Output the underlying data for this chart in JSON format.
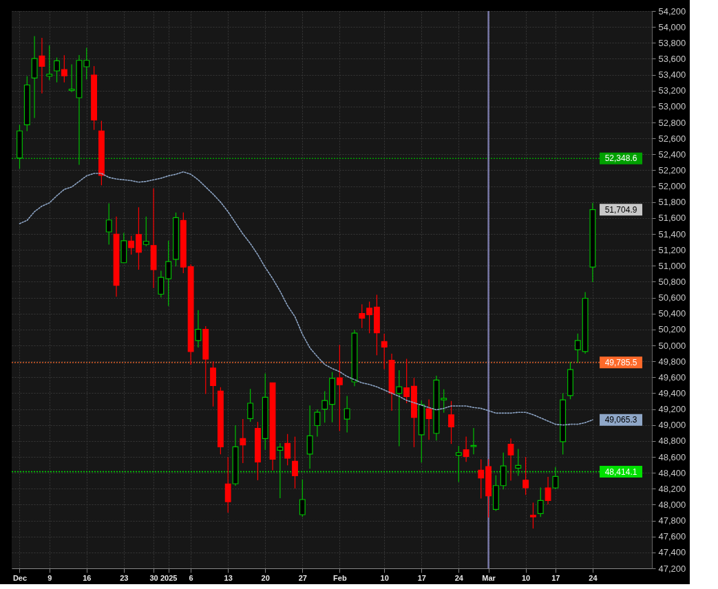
{
  "chart_data": {
    "type": "candlestick",
    "categories": [
      "Dec",
      null,
      null,
      null,
      "9",
      null,
      null,
      null,
      null,
      "16",
      null,
      null,
      null,
      null,
      "23",
      null,
      null,
      null,
      "30",
      null,
      "2025",
      null,
      null,
      "6",
      null,
      null,
      null,
      null,
      "13",
      null,
      null,
      null,
      null,
      "20",
      null,
      null,
      null,
      null,
      "27",
      null,
      null,
      null,
      null,
      "Feb",
      null,
      null,
      null,
      null,
      null,
      "10",
      null,
      null,
      null,
      null,
      "17",
      null,
      null,
      null,
      null,
      "24",
      null,
      null,
      null,
      "Mar",
      null,
      null,
      null,
      null,
      "10",
      null,
      null,
      null,
      "17",
      null,
      null,
      null,
      null,
      "24"
    ],
    "ylim": [
      47200,
      54200
    ],
    "yticks": [
      {
        "value": 47200,
        "label": "47,200"
      },
      {
        "value": 47400,
        "label": "47,400"
      },
      {
        "value": 47600,
        "label": "47,600"
      },
      {
        "value": 47800,
        "label": "47,800"
      },
      {
        "value": 48000,
        "label": "48,000"
      },
      {
        "value": 48200,
        "label": "48,200"
      },
      {
        "value": 48400,
        "label": "48,400"
      },
      {
        "value": 48600,
        "label": "48,600"
      },
      {
        "value": 48800,
        "label": "48,800"
      },
      {
        "value": 49000,
        "label": "49,000"
      },
      {
        "value": 49200,
        "label": "49,200"
      },
      {
        "value": 49400,
        "label": "49,400"
      },
      {
        "value": 49600,
        "label": "49,600"
      },
      {
        "value": 49800,
        "label": "49,800"
      },
      {
        "value": 50000,
        "label": "50,000"
      },
      {
        "value": 50200,
        "label": "50,200"
      },
      {
        "value": 50400,
        "label": "50,400"
      },
      {
        "value": 50600,
        "label": "50,600"
      },
      {
        "value": 50800,
        "label": "50,800"
      },
      {
        "value": 51000,
        "label": "51,000"
      },
      {
        "value": 51200,
        "label": "51,200"
      },
      {
        "value": 51400,
        "label": "51,400"
      },
      {
        "value": 51600,
        "label": "51,600"
      },
      {
        "value": 51800,
        "label": "51,800"
      },
      {
        "value": 52000,
        "label": "52,000"
      },
      {
        "value": 52200,
        "label": "52,200"
      },
      {
        "value": 52400,
        "label": "52,400"
      },
      {
        "value": 52600,
        "label": "52,600"
      },
      {
        "value": 52800,
        "label": "52,800"
      },
      {
        "value": 53000,
        "label": "53,000"
      },
      {
        "value": 53200,
        "label": "53,200"
      },
      {
        "value": 53400,
        "label": "53,400"
      },
      {
        "value": 53600,
        "label": "53,600"
      },
      {
        "value": 53800,
        "label": "53,800"
      },
      {
        "value": 54000,
        "label": "54,000"
      },
      {
        "value": 54200,
        "label": "54,200"
      }
    ],
    "grid": true,
    "series": [
      {
        "type": "line",
        "color": "#8fa7c8",
        "line_style": "dotted",
        "values": [
          51530,
          51570,
          51680,
          51750,
          51790,
          51880,
          51960,
          51990,
          52060,
          52130,
          52160,
          52160,
          52110,
          52090,
          52080,
          52070,
          52050,
          52060,
          52080,
          52100,
          52130,
          52150,
          52180,
          52150,
          52080,
          51990,
          51900,
          51800,
          51680,
          51540,
          51400,
          51280,
          51140,
          50980,
          50840,
          50680,
          50500,
          50360,
          50140,
          49970,
          49860,
          49760,
          49710,
          49670,
          49610,
          49570,
          49530,
          49510,
          49480,
          49440,
          49400,
          49360,
          49310,
          49280,
          49250,
          49220,
          49190,
          49210,
          49240,
          49240,
          49240,
          49220,
          49210,
          49180,
          49150,
          49150,
          49150,
          49160,
          49160,
          49130,
          49090,
          49050,
          49010,
          49000,
          49010,
          49010,
          49030,
          49065.3
        ],
        "value_labels": [
          null,
          null,
          null,
          null,
          null,
          null,
          null,
          null,
          null,
          null,
          null,
          null,
          null,
          null,
          null,
          null,
          null,
          null,
          null,
          null,
          null,
          null,
          null,
          null,
          null,
          null,
          null,
          null,
          null,
          null,
          null,
          null,
          null,
          null,
          null,
          null,
          null,
          null,
          null,
          null,
          null,
          null,
          null,
          null,
          null,
          null,
          null,
          null,
          null,
          null,
          null,
          null,
          null,
          null,
          null,
          null,
          null,
          null,
          null,
          null,
          null,
          null,
          null,
          null,
          null,
          null,
          null,
          null,
          null,
          null,
          null,
          null,
          null,
          null,
          null,
          null,
          null,
          "49,065.3"
        ]
      },
      {
        "type": "candlestick",
        "ohlc": [
          [
            52354,
            52771,
            52219,
            52694
          ],
          [
            52771,
            53381,
            52691,
            53271
          ],
          [
            53359,
            53884,
            52857,
            53602
          ],
          [
            53635,
            53862,
            53166,
            53506
          ],
          [
            53381,
            53768,
            53332,
            53406
          ],
          [
            53448,
            53616,
            53304,
            53575
          ],
          [
            53464,
            53644,
            53304,
            53387
          ],
          [
            53202,
            53530,
            53180,
            53218
          ],
          [
            53111,
            53646,
            52268,
            53580
          ],
          [
            53500,
            53738,
            53340,
            53580
          ],
          [
            53395,
            53508,
            52707,
            52832
          ],
          [
            52694,
            52821,
            52011,
            52136
          ],
          [
            51426,
            51785,
            51266,
            51575
          ],
          [
            51398,
            51619,
            50611,
            50755
          ],
          [
            51039,
            51412,
            51033,
            51315
          ],
          [
            51310,
            51376,
            51141,
            51227
          ],
          [
            51393,
            51735,
            50951,
            51169
          ],
          [
            51268,
            51619,
            51246,
            51307
          ],
          [
            51255,
            51973,
            50722,
            50951
          ],
          [
            50644,
            50937,
            50603,
            50854
          ],
          [
            50838,
            51315,
            50495,
            51053
          ],
          [
            51081,
            51669,
            50992,
            51605
          ],
          [
            51569,
            51669,
            50907,
            50984
          ],
          [
            50989,
            51017,
            49758,
            49923
          ],
          [
            50061,
            50443,
            49973,
            50202
          ],
          [
            50202,
            50241,
            49390,
            49827
          ],
          [
            49716,
            49799,
            49233,
            49495
          ],
          [
            49426,
            49476,
            48633,
            48727
          ],
          [
            48261,
            48598,
            47899,
            48037
          ],
          [
            48263,
            48998,
            48238,
            48727
          ],
          [
            48830,
            49075,
            48523,
            48749
          ],
          [
            49081,
            49454,
            49040,
            49274
          ],
          [
            48957,
            49040,
            48307,
            48537
          ],
          [
            48830,
            49647,
            48689,
            49349
          ],
          [
            49531,
            49531,
            48432,
            48570
          ],
          [
            48683,
            48772,
            48081,
            48722
          ],
          [
            48769,
            48888,
            48495,
            48584
          ],
          [
            48545,
            48854,
            48203,
            48363
          ],
          [
            47874,
            48316,
            47846,
            48064
          ],
          [
            48636,
            49247,
            48451,
            48865
          ],
          [
            48993,
            49197,
            48854,
            49161
          ],
          [
            49200,
            49426,
            49031,
            49307
          ],
          [
            49260,
            49666,
            49034,
            49586
          ],
          [
            49592,
            50006,
            48923,
            49506
          ],
          [
            49075,
            49365,
            48907,
            49205
          ],
          [
            49542,
            50194,
            49487,
            50155
          ],
          [
            50401,
            50517,
            50219,
            50343
          ],
          [
            50467,
            50550,
            50153,
            50385
          ],
          [
            50481,
            50636,
            49876,
            50158
          ],
          [
            50048,
            50147,
            49702,
            49979
          ],
          [
            49813,
            49896,
            49178,
            49399
          ],
          [
            49399,
            49689,
            48733,
            49481
          ],
          [
            49468,
            49832,
            49274,
            49357
          ],
          [
            49487,
            49592,
            48722,
            49095
          ],
          [
            48877,
            49307,
            48529,
            49255
          ],
          [
            49205,
            49321,
            48813,
            49081
          ],
          [
            48896,
            49619,
            48805,
            49564
          ],
          [
            49316,
            49448,
            49156,
            49335
          ],
          [
            49128,
            49302,
            48763,
            48976
          ],
          [
            48620,
            48738,
            48285,
            48653
          ],
          [
            48689,
            48854,
            48537,
            48606
          ],
          [
            48730,
            48962,
            48633,
            48744
          ],
          [
            48432,
            48570,
            48078,
            48335
          ],
          [
            48479,
            48570,
            47838,
            48111
          ],
          [
            47940,
            48368,
            47921,
            48239
          ],
          [
            48239,
            48653,
            48192,
            48487
          ],
          [
            48758,
            48832,
            48302,
            48625
          ],
          [
            48459,
            48700,
            48363,
            48493
          ],
          [
            48308,
            48598,
            48122,
            48211
          ],
          [
            47866,
            48026,
            47700,
            47846
          ],
          [
            47888,
            48216,
            47846,
            48053
          ],
          [
            48211,
            48349,
            48004,
            48053
          ],
          [
            48211,
            48473,
            48197,
            48354
          ],
          [
            48791,
            49399,
            48631,
            49316
          ],
          [
            49371,
            49791,
            49324,
            49697
          ],
          [
            49945,
            50150,
            49785,
            50061
          ],
          [
            49923,
            50669,
            49896,
            50592
          ],
          [
            50984,
            51790,
            50796,
            51704.9
          ]
        ],
        "colors": [
          "#00c000",
          "#00c000",
          "#00c000",
          "#ff0000",
          "#00c000",
          "#00c000",
          "#ff0000",
          "#00c000",
          "#00c000",
          "#00c000",
          "#ff0000",
          "#ff0000",
          "#00c000",
          "#ff0000",
          "#00c000",
          "#ff0000",
          "#ff0000",
          "#00c000",
          "#ff0000",
          "#00c000",
          "#00c000",
          "#00c000",
          "#ff0000",
          "#ff0000",
          "#00c000",
          "#ff0000",
          "#ff0000",
          "#ff0000",
          "#ff0000",
          "#00c000",
          "#ff0000",
          "#00c000",
          "#ff0000",
          "#00c000",
          "#ff0000",
          "#00c000",
          "#ff0000",
          "#ff0000",
          "#00c000",
          "#00c000",
          "#00c000",
          "#00c000",
          "#00c000",
          "#ff0000",
          "#00c000",
          "#00c000",
          "#ff0000",
          "#ff0000",
          "#ff0000",
          "#ff0000",
          "#ff0000",
          "#00c000",
          "#ff0000",
          "#ff0000",
          "#00c000",
          "#ff0000",
          "#00c000",
          "#00c000",
          "#ff0000",
          "#00c000",
          "#ff0000",
          "#00c000",
          "#ff0000",
          "#ff0000",
          "#00c000",
          "#00c000",
          "#ff0000",
          "#00c000",
          "#ff0000",
          "#ff0000",
          "#00c000",
          "#ff0000",
          "#00c000",
          "#00c000",
          "#00c000",
          "#00c000",
          "#00c000",
          "#00c000"
        ],
        "value_labels": [
          null,
          null,
          null,
          null,
          null,
          null,
          null,
          null,
          null,
          null,
          null,
          null,
          null,
          null,
          null,
          null,
          null,
          null,
          null,
          null,
          null,
          null,
          null,
          null,
          null,
          null,
          null,
          null,
          null,
          null,
          null,
          null,
          null,
          null,
          null,
          null,
          null,
          null,
          null,
          null,
          null,
          null,
          null,
          null,
          null,
          null,
          null,
          null,
          null,
          null,
          null,
          null,
          null,
          null,
          null,
          null,
          null,
          null,
          null,
          null,
          null,
          null,
          null,
          null,
          null,
          null,
          null,
          null,
          null,
          null,
          null,
          null,
          null,
          null,
          null,
          null,
          null,
          "51,704.9"
        ]
      }
    ],
    "ref_lines": [
      {
        "axis": "y",
        "value": 52348.6,
        "label": "52,348.6",
        "color": "#00a000",
        "line_style": "dotted"
      },
      {
        "axis": "y",
        "value": 49785.5,
        "label": "49,785.5",
        "color": "#ff6a2a",
        "line_style": "dotted"
      },
      {
        "axis": "y",
        "value": 48414.1,
        "label": "48,414.1",
        "color": "#00e000",
        "line_style": "dotted"
      },
      {
        "axis": "x",
        "value": "Mar",
        "color": "#9a9ad8",
        "line_style": "solid"
      }
    ]
  }
}
